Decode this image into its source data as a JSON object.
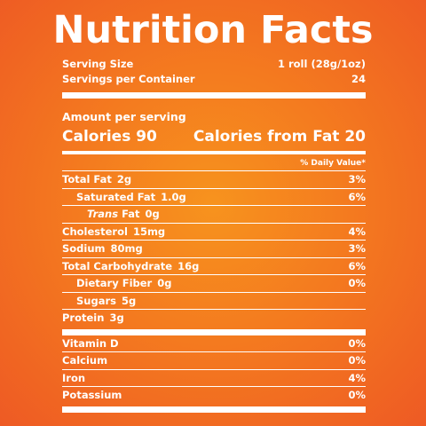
{
  "title": "Nutrition Facts",
  "serving": {
    "size_label": "Serving Size",
    "size_value": "1 roll (28g/1oz)",
    "per_container_label": "Servings per Container",
    "per_container_value": "24"
  },
  "amount_per_serving": "Amount per serving",
  "calories": {
    "label": "Calories 90",
    "from_fat": "Calories from Fat 20"
  },
  "daily_value_header": "% Daily Value*",
  "nutrients": [
    {
      "name": "Total Fat",
      "amount": "2g",
      "dv": "3%"
    },
    {
      "name": "Saturated Fat",
      "amount": "1.0g",
      "dv": "6%"
    },
    {
      "name_prefix": "Trans",
      "name": "Fat",
      "amount": "0g",
      "dv": ""
    },
    {
      "name": "Cholesterol",
      "amount": "15mg",
      "dv": "4%"
    },
    {
      "name": "Sodium",
      "amount": "80mg",
      "dv": "3%"
    },
    {
      "name": "Total Carbohydrate",
      "amount": "16g",
      "dv": "6%"
    },
    {
      "name": "Dietary Fiber",
      "amount": "0g",
      "dv": "0%"
    },
    {
      "name": "Sugars",
      "amount": "5g",
      "dv": ""
    },
    {
      "name": "Protein",
      "amount": "3g",
      "dv": ""
    }
  ],
  "vitamins": [
    {
      "name": "Vitamin D",
      "dv": "0%"
    },
    {
      "name": "Calcium",
      "dv": "0%"
    },
    {
      "name": "Iron",
      "dv": "4%"
    },
    {
      "name": "Potassium",
      "dv": "0%"
    }
  ],
  "colors": {
    "background_center": "#f7931e",
    "background_edge": "#ee5a24",
    "text": "#ffffff"
  }
}
